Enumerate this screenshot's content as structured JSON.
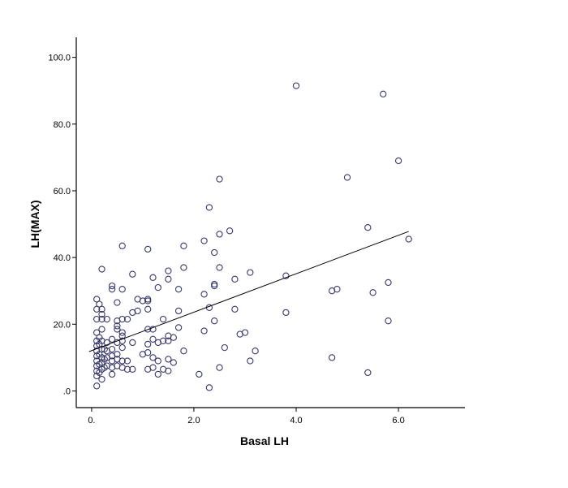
{
  "chart_data": {
    "type": "scatter",
    "title": "",
    "xlabel": "Basal LH",
    "ylabel": "LH(MAX)",
    "xlim": [
      -0.3,
      7.3
    ],
    "ylim": [
      -5,
      106
    ],
    "x_ticks": [
      0,
      2,
      4,
      6
    ],
    "x_tick_labels": [
      "0.",
      "2.0",
      "4.0",
      "6.0"
    ],
    "y_ticks": [
      0,
      20,
      40,
      60,
      80,
      100
    ],
    "y_tick_labels": [
      ".0",
      "20.0",
      "40.0",
      "60.0",
      "80.0",
      "100.0"
    ],
    "grid": false,
    "marker_color": "#3a3a6a",
    "fit_line": {
      "type": "linear",
      "x": [
        -0.05,
        6.2
      ],
      "y": [
        11.8,
        47.8
      ],
      "color": "#000000"
    },
    "points": [
      [
        0.1,
        1.5
      ],
      [
        0.1,
        4.5
      ],
      [
        0.1,
        6.0
      ],
      [
        0.1,
        7.5
      ],
      [
        0.1,
        9.0
      ],
      [
        0.1,
        10.5
      ],
      [
        0.1,
        12.0
      ],
      [
        0.1,
        13.5
      ],
      [
        0.1,
        15.0
      ],
      [
        0.1,
        17.5
      ],
      [
        0.1,
        21.5
      ],
      [
        0.1,
        24.5
      ],
      [
        0.1,
        27.5
      ],
      [
        0.15,
        5.5
      ],
      [
        0.15,
        8.0
      ],
      [
        0.15,
        11.0
      ],
      [
        0.15,
        14.0
      ],
      [
        0.15,
        16.0
      ],
      [
        0.15,
        26.0
      ],
      [
        0.2,
        3.5
      ],
      [
        0.2,
        6.5
      ],
      [
        0.2,
        8.5
      ],
      [
        0.2,
        10.0
      ],
      [
        0.2,
        12.5
      ],
      [
        0.2,
        15.0
      ],
      [
        0.2,
        18.5
      ],
      [
        0.2,
        21.5
      ],
      [
        0.2,
        23.0
      ],
      [
        0.2,
        24.5
      ],
      [
        0.2,
        36.5
      ],
      [
        0.25,
        7.0
      ],
      [
        0.25,
        9.5
      ],
      [
        0.25,
        12.5
      ],
      [
        0.3,
        7.5
      ],
      [
        0.3,
        10.0
      ],
      [
        0.3,
        12.0
      ],
      [
        0.3,
        14.5
      ],
      [
        0.3,
        21.5
      ],
      [
        0.4,
        5.0
      ],
      [
        0.4,
        7.0
      ],
      [
        0.4,
        9.0
      ],
      [
        0.4,
        10.5
      ],
      [
        0.4,
        12.5
      ],
      [
        0.4,
        15.5
      ],
      [
        0.4,
        30.5
      ],
      [
        0.4,
        31.5
      ],
      [
        0.5,
        7.5
      ],
      [
        0.5,
        9.5
      ],
      [
        0.5,
        11.0
      ],
      [
        0.5,
        14.5
      ],
      [
        0.5,
        18.5
      ],
      [
        0.5,
        19.5
      ],
      [
        0.5,
        21.0
      ],
      [
        0.5,
        26.5
      ],
      [
        0.6,
        7.0
      ],
      [
        0.6,
        9.0
      ],
      [
        0.6,
        13.0
      ],
      [
        0.6,
        15.0
      ],
      [
        0.6,
        16.5
      ],
      [
        0.6,
        17.5
      ],
      [
        0.6,
        21.5
      ],
      [
        0.6,
        30.5
      ],
      [
        0.6,
        43.5
      ],
      [
        0.7,
        6.5
      ],
      [
        0.7,
        9.0
      ],
      [
        0.7,
        21.5
      ],
      [
        0.8,
        6.5
      ],
      [
        0.8,
        14.5
      ],
      [
        0.8,
        23.5
      ],
      [
        0.8,
        35.0
      ],
      [
        0.9,
        24.0
      ],
      [
        0.9,
        27.5
      ],
      [
        1.0,
        11.0
      ],
      [
        1.0,
        27.0
      ],
      [
        1.1,
        6.5
      ],
      [
        1.1,
        11.5
      ],
      [
        1.1,
        14.0
      ],
      [
        1.1,
        18.5
      ],
      [
        1.1,
        24.5
      ],
      [
        1.1,
        27.0
      ],
      [
        1.1,
        27.5
      ],
      [
        1.1,
        42.5
      ],
      [
        1.2,
        7.0
      ],
      [
        1.2,
        10.0
      ],
      [
        1.2,
        15.5
      ],
      [
        1.2,
        18.5
      ],
      [
        1.2,
        34.0
      ],
      [
        1.3,
        5.0
      ],
      [
        1.3,
        9.0
      ],
      [
        1.3,
        14.5
      ],
      [
        1.3,
        31.0
      ],
      [
        1.4,
        6.5
      ],
      [
        1.4,
        15.0
      ],
      [
        1.4,
        21.5
      ],
      [
        1.5,
        6.0
      ],
      [
        1.5,
        9.5
      ],
      [
        1.5,
        15.0
      ],
      [
        1.5,
        16.5
      ],
      [
        1.5,
        33.5
      ],
      [
        1.5,
        36.0
      ],
      [
        1.6,
        8.5
      ],
      [
        1.6,
        16.0
      ],
      [
        1.7,
        19.0
      ],
      [
        1.7,
        24.0
      ],
      [
        1.7,
        30.5
      ],
      [
        1.8,
        12.0
      ],
      [
        1.8,
        37.0
      ],
      [
        1.8,
        43.5
      ],
      [
        2.1,
        5.0
      ],
      [
        2.2,
        18.0
      ],
      [
        2.2,
        29.0
      ],
      [
        2.2,
        45.0
      ],
      [
        2.3,
        1.0
      ],
      [
        2.3,
        25.0
      ],
      [
        2.3,
        55.0
      ],
      [
        2.4,
        21.0
      ],
      [
        2.4,
        31.5
      ],
      [
        2.4,
        32.0
      ],
      [
        2.4,
        41.5
      ],
      [
        2.5,
        7.0
      ],
      [
        2.5,
        37.0
      ],
      [
        2.5,
        47.0
      ],
      [
        2.5,
        63.5
      ],
      [
        2.6,
        13.0
      ],
      [
        2.7,
        48.0
      ],
      [
        2.8,
        24.5
      ],
      [
        2.8,
        33.5
      ],
      [
        2.9,
        17.0
      ],
      [
        3.0,
        17.5
      ],
      [
        3.1,
        9.0
      ],
      [
        3.1,
        35.5
      ],
      [
        3.2,
        12.0
      ],
      [
        3.8,
        23.5
      ],
      [
        3.8,
        34.5
      ],
      [
        4.0,
        91.5
      ],
      [
        4.7,
        10.0
      ],
      [
        4.7,
        30.0
      ],
      [
        4.8,
        30.5
      ],
      [
        5.0,
        64.0
      ],
      [
        5.4,
        5.5
      ],
      [
        5.4,
        49.0
      ],
      [
        5.5,
        29.5
      ],
      [
        5.7,
        89.0
      ],
      [
        5.8,
        21.0
      ],
      [
        5.8,
        32.5
      ],
      [
        6.0,
        69.0
      ],
      [
        6.2,
        45.5
      ]
    ]
  }
}
